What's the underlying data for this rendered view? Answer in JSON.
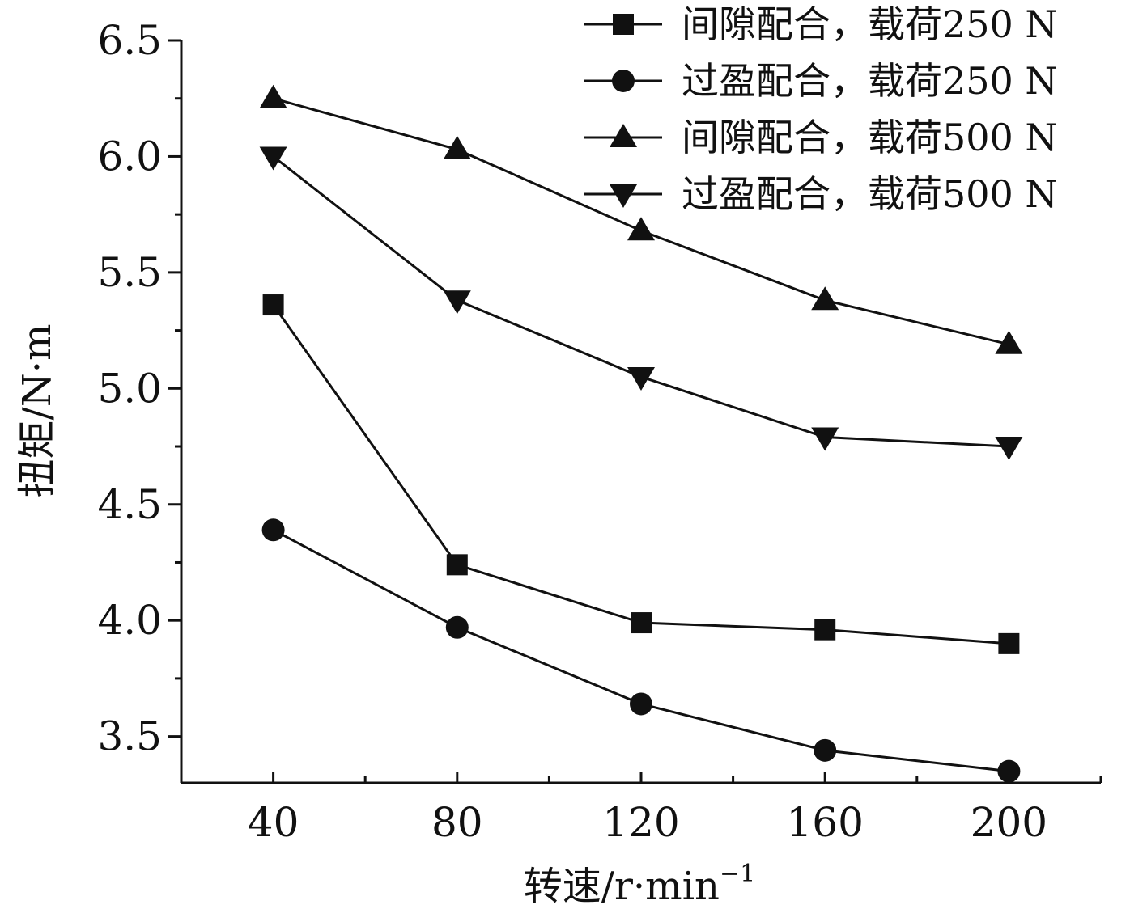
{
  "chart_data": {
    "type": "line",
    "xlabel_main": "转速/r·min",
    "xlabel_sup": "−1",
    "ylabel": "扭矩/N·m",
    "x": [
      40,
      80,
      120,
      160,
      200
    ],
    "xlim": [
      20,
      220
    ],
    "ylim": [
      3.3,
      6.5
    ],
    "x_ticks": [
      "40",
      "80",
      "120",
      "160",
      "200"
    ],
    "y_ticks": [
      "3.5",
      "4.0",
      "4.5",
      "5.0",
      "5.5",
      "6.0",
      "6.5"
    ],
    "legend_position": "top-right",
    "grid": false,
    "series": [
      {
        "name": "间隙配合，载荷250 N",
        "marker": "square",
        "values": [
          5.36,
          4.24,
          3.99,
          3.96,
          3.9
        ]
      },
      {
        "name": "过盈配合，载荷250 N",
        "marker": "circle",
        "values": [
          4.39,
          3.97,
          3.64,
          3.44,
          3.35
        ]
      },
      {
        "name": "间隙配合，载荷500 N",
        "marker": "triangle-up",
        "values": [
          6.25,
          6.03,
          5.68,
          5.38,
          5.19
        ]
      },
      {
        "name": "过盈配合，载荷500 N",
        "marker": "triangle-down",
        "values": [
          6.0,
          5.38,
          5.05,
          4.79,
          4.75
        ]
      }
    ],
    "colors": {
      "line": "#111111",
      "marker": "#111111"
    }
  }
}
